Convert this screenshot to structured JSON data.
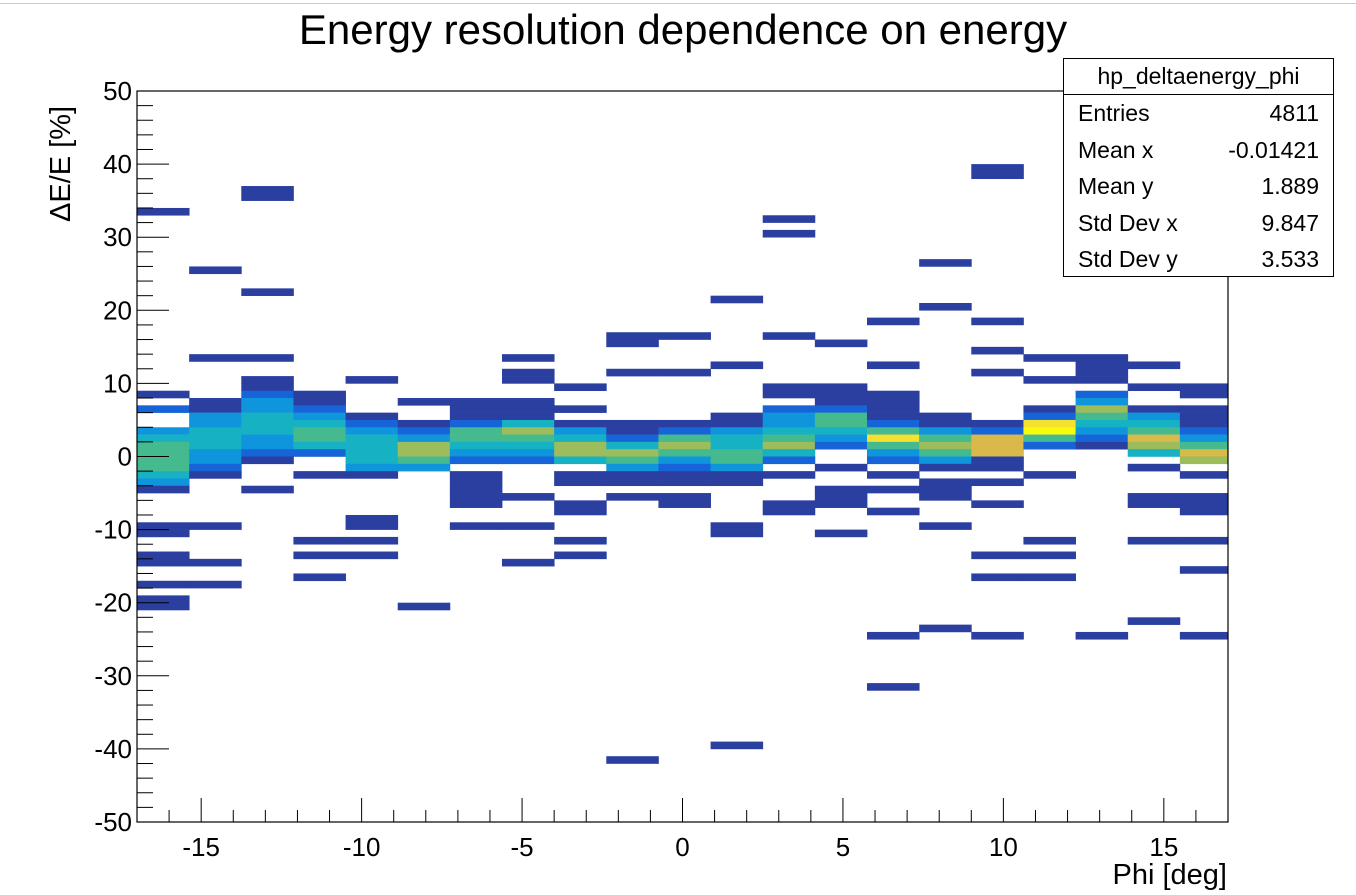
{
  "chart_data": {
    "type": "heatmap",
    "title": "Energy resolution dependence on energy",
    "xlabel": "Phi [deg]",
    "ylabel": "ΔE/E [%]",
    "xlim": [
      -17,
      17
    ],
    "ylim": [
      -50,
      50
    ],
    "x_ticks": [
      -15,
      -10,
      -5,
      0,
      5,
      10,
      15
    ],
    "y_ticks": [
      -50,
      -40,
      -30,
      -20,
      -10,
      0,
      10,
      20,
      30,
      40,
      50
    ],
    "x_bin_edges": [
      -17,
      -15.375,
      -13.75,
      -12.125,
      -10.5,
      -8.875,
      -7.25,
      -5.625,
      -4,
      -2.375,
      -0.75,
      0.875,
      2.5,
      4.125,
      5.75,
      7.375,
      9,
      10.625,
      12.25,
      13.875,
      15.5,
      17
    ],
    "y_bin_width": 1,
    "colorscale": [
      "#2a3fa0",
      "#1764d8",
      "#0f95dc",
      "#16b2c4",
      "#45ba8f",
      "#9dbc5c",
      "#d8b949",
      "#f6e12f",
      "#f9fb0e"
    ],
    "cells": [
      [
        0,
        33,
        1
      ],
      [
        0,
        8,
        1
      ],
      [
        0,
        6,
        2
      ],
      [
        0,
        3,
        3
      ],
      [
        0,
        2,
        4
      ],
      [
        0,
        1,
        5
      ],
      [
        0,
        0,
        5
      ],
      [
        0,
        -1,
        5
      ],
      [
        0,
        -2,
        5
      ],
      [
        0,
        -3,
        4
      ],
      [
        0,
        -4,
        3
      ],
      [
        0,
        -5,
        1
      ],
      [
        0,
        -10,
        1
      ],
      [
        0,
        -11,
        1
      ],
      [
        0,
        -14,
        1
      ],
      [
        0,
        -15,
        1
      ],
      [
        0,
        -18,
        1
      ],
      [
        0,
        -20,
        1
      ],
      [
        0,
        -21,
        1
      ],
      [
        1,
        25,
        1
      ],
      [
        1,
        13,
        1
      ],
      [
        1,
        7,
        1
      ],
      [
        1,
        6,
        1
      ],
      [
        1,
        5,
        3
      ],
      [
        1,
        4,
        3
      ],
      [
        1,
        3,
        4
      ],
      [
        1,
        2,
        4
      ],
      [
        1,
        1,
        4
      ],
      [
        1,
        0,
        3
      ],
      [
        1,
        -1,
        3
      ],
      [
        1,
        -2,
        2
      ],
      [
        1,
        -3,
        1
      ],
      [
        1,
        -10,
        1
      ],
      [
        1,
        -15,
        1
      ],
      [
        1,
        -18,
        1
      ],
      [
        2,
        36,
        1
      ],
      [
        2,
        35,
        1
      ],
      [
        2,
        22,
        1
      ],
      [
        2,
        13,
        1
      ],
      [
        2,
        10,
        1
      ],
      [
        2,
        9,
        1
      ],
      [
        2,
        8,
        2
      ],
      [
        2,
        7,
        3
      ],
      [
        2,
        6,
        3
      ],
      [
        2,
        5,
        4
      ],
      [
        2,
        4,
        4
      ],
      [
        2,
        3,
        4
      ],
      [
        2,
        2,
        3
      ],
      [
        2,
        1,
        3
      ],
      [
        2,
        0,
        2
      ],
      [
        2,
        -1,
        1
      ],
      [
        2,
        -5,
        1
      ],
      [
        3,
        8,
        1
      ],
      [
        3,
        7,
        1
      ],
      [
        3,
        6,
        2
      ],
      [
        3,
        5,
        3
      ],
      [
        3,
        4,
        4
      ],
      [
        3,
        3,
        5
      ],
      [
        3,
        2,
        5
      ],
      [
        3,
        1,
        4
      ],
      [
        3,
        0,
        2
      ],
      [
        3,
        -3,
        1
      ],
      [
        3,
        -12,
        1
      ],
      [
        3,
        -14,
        1
      ],
      [
        3,
        -17,
        1
      ],
      [
        4,
        10,
        1
      ],
      [
        4,
        5,
        1
      ],
      [
        4,
        4,
        2
      ],
      [
        4,
        3,
        3
      ],
      [
        4,
        2,
        4
      ],
      [
        4,
        1,
        4
      ],
      [
        4,
        0,
        4
      ],
      [
        4,
        -1,
        4
      ],
      [
        4,
        -2,
        3
      ],
      [
        4,
        -3,
        1
      ],
      [
        4,
        -9,
        1
      ],
      [
        4,
        -10,
        1
      ],
      [
        4,
        -12,
        1
      ],
      [
        4,
        -14,
        1
      ],
      [
        5,
        7,
        1
      ],
      [
        5,
        4,
        1
      ],
      [
        5,
        3,
        2
      ],
      [
        5,
        2,
        3
      ],
      [
        5,
        1,
        6
      ],
      [
        5,
        0,
        6
      ],
      [
        5,
        -1,
        5
      ],
      [
        5,
        -2,
        3
      ],
      [
        5,
        -21,
        1
      ],
      [
        6,
        7,
        1
      ],
      [
        6,
        6,
        1
      ],
      [
        6,
        5,
        1
      ],
      [
        6,
        4,
        2
      ],
      [
        6,
        3,
        5
      ],
      [
        6,
        2,
        5
      ],
      [
        6,
        1,
        4
      ],
      [
        6,
        0,
        3
      ],
      [
        6,
        -1,
        2
      ],
      [
        6,
        -3,
        1
      ],
      [
        6,
        -4,
        1
      ],
      [
        6,
        -5,
        1
      ],
      [
        6,
        -6,
        1
      ],
      [
        6,
        -7,
        1
      ],
      [
        6,
        -10,
        1
      ],
      [
        7,
        13,
        1
      ],
      [
        7,
        11,
        1
      ],
      [
        7,
        10,
        1
      ],
      [
        7,
        7,
        1
      ],
      [
        7,
        6,
        1
      ],
      [
        7,
        5,
        1
      ],
      [
        7,
        4,
        4
      ],
      [
        7,
        3,
        6
      ],
      [
        7,
        2,
        5
      ],
      [
        7,
        1,
        4
      ],
      [
        7,
        0,
        3
      ],
      [
        7,
        -1,
        2
      ],
      [
        7,
        -6,
        1
      ],
      [
        7,
        -10,
        1
      ],
      [
        7,
        -15,
        1
      ],
      [
        8,
        9,
        1
      ],
      [
        8,
        6,
        1
      ],
      [
        8,
        4,
        1
      ],
      [
        8,
        3,
        3
      ],
      [
        8,
        2,
        4
      ],
      [
        8,
        1,
        6
      ],
      [
        8,
        0,
        6
      ],
      [
        8,
        -1,
        4
      ],
      [
        8,
        -3,
        1
      ],
      [
        8,
        -4,
        1
      ],
      [
        8,
        -7,
        1
      ],
      [
        8,
        -8,
        1
      ],
      [
        8,
        -12,
        1
      ],
      [
        8,
        -14,
        1
      ],
      [
        9,
        16,
        1
      ],
      [
        9,
        15,
        1
      ],
      [
        9,
        11,
        1
      ],
      [
        9,
        4,
        1
      ],
      [
        9,
        3,
        1
      ],
      [
        9,
        2,
        2
      ],
      [
        9,
        1,
        4
      ],
      [
        9,
        0,
        6
      ],
      [
        9,
        -1,
        5
      ],
      [
        9,
        -2,
        3
      ],
      [
        9,
        -3,
        1
      ],
      [
        9,
        -4,
        1
      ],
      [
        9,
        -6,
        1
      ],
      [
        9,
        -42,
        1
      ],
      [
        10,
        16,
        1
      ],
      [
        10,
        11,
        1
      ],
      [
        10,
        4,
        1
      ],
      [
        10,
        3,
        2
      ],
      [
        10,
        2,
        5
      ],
      [
        10,
        1,
        6
      ],
      [
        10,
        0,
        5
      ],
      [
        10,
        -1,
        3
      ],
      [
        10,
        -2,
        2
      ],
      [
        10,
        -3,
        1
      ],
      [
        10,
        -4,
        1
      ],
      [
        10,
        -6,
        1
      ],
      [
        10,
        -7,
        1
      ],
      [
        11,
        21,
        1
      ],
      [
        11,
        12,
        1
      ],
      [
        11,
        5,
        1
      ],
      [
        11,
        4,
        1
      ],
      [
        11,
        3,
        3
      ],
      [
        11,
        2,
        4
      ],
      [
        11,
        1,
        4
      ],
      [
        11,
        0,
        5
      ],
      [
        11,
        -1,
        5
      ],
      [
        11,
        -2,
        3
      ],
      [
        11,
        -3,
        1
      ],
      [
        11,
        -4,
        1
      ],
      [
        11,
        -10,
        1
      ],
      [
        11,
        -11,
        1
      ],
      [
        11,
        -40,
        1
      ],
      [
        12,
        32,
        1
      ],
      [
        12,
        30,
        1
      ],
      [
        12,
        16,
        1
      ],
      [
        12,
        9,
        1
      ],
      [
        12,
        8,
        1
      ],
      [
        12,
        6,
        2
      ],
      [
        12,
        5,
        3
      ],
      [
        12,
        4,
        3
      ],
      [
        12,
        3,
        4
      ],
      [
        12,
        2,
        5
      ],
      [
        12,
        1,
        6
      ],
      [
        12,
        0,
        4
      ],
      [
        12,
        -1,
        2
      ],
      [
        12,
        -3,
        1
      ],
      [
        12,
        -7,
        1
      ],
      [
        12,
        -8,
        1
      ],
      [
        13,
        15,
        1
      ],
      [
        13,
        9,
        1
      ],
      [
        13,
        8,
        1
      ],
      [
        13,
        7,
        1
      ],
      [
        13,
        6,
        2
      ],
      [
        13,
        5,
        5
      ],
      [
        13,
        4,
        5
      ],
      [
        13,
        3,
        4
      ],
      [
        13,
        2,
        3
      ],
      [
        13,
        1,
        2
      ],
      [
        13,
        -2,
        1
      ],
      [
        13,
        -5,
        1
      ],
      [
        13,
        -6,
        1
      ],
      [
        13,
        -7,
        1
      ],
      [
        13,
        -11,
        1
      ],
      [
        14,
        18,
        1
      ],
      [
        14,
        12,
        1
      ],
      [
        14,
        8,
        1
      ],
      [
        14,
        7,
        1
      ],
      [
        14,
        6,
        1
      ],
      [
        14,
        5,
        1
      ],
      [
        14,
        4,
        2
      ],
      [
        14,
        3,
        5
      ],
      [
        14,
        2,
        8
      ],
      [
        14,
        1,
        5
      ],
      [
        14,
        0,
        3
      ],
      [
        14,
        -1,
        2
      ],
      [
        14,
        -3,
        1
      ],
      [
        14,
        -5,
        1
      ],
      [
        14,
        -8,
        1
      ],
      [
        14,
        -25,
        1
      ],
      [
        14,
        -32,
        1
      ],
      [
        15,
        26,
        1
      ],
      [
        15,
        20,
        1
      ],
      [
        15,
        5,
        1
      ],
      [
        15,
        4,
        1
      ],
      [
        15,
        3,
        3
      ],
      [
        15,
        2,
        5
      ],
      [
        15,
        1,
        6
      ],
      [
        15,
        0,
        5
      ],
      [
        15,
        -1,
        3
      ],
      [
        15,
        -2,
        1
      ],
      [
        15,
        -4,
        1
      ],
      [
        15,
        -5,
        1
      ],
      [
        15,
        -6,
        1
      ],
      [
        15,
        -10,
        1
      ],
      [
        15,
        -24,
        1
      ],
      [
        16,
        39,
        1
      ],
      [
        16,
        38,
        1
      ],
      [
        16,
        18,
        1
      ],
      [
        16,
        14,
        1
      ],
      [
        16,
        11,
        1
      ],
      [
        16,
        4,
        1
      ],
      [
        16,
        3,
        2
      ],
      [
        16,
        2,
        7
      ],
      [
        16,
        1,
        7
      ],
      [
        16,
        0,
        7
      ],
      [
        16,
        -1,
        1
      ],
      [
        16,
        -2,
        1
      ],
      [
        16,
        -4,
        1
      ],
      [
        16,
        -7,
        1
      ],
      [
        16,
        -14,
        1
      ],
      [
        16,
        -17,
        1
      ],
      [
        16,
        -25,
        1
      ],
      [
        17,
        13,
        1
      ],
      [
        17,
        10,
        1
      ],
      [
        17,
        6,
        1
      ],
      [
        17,
        5,
        2
      ],
      [
        17,
        4,
        8
      ],
      [
        17,
        3,
        9
      ],
      [
        17,
        2,
        5
      ],
      [
        17,
        1,
        2
      ],
      [
        17,
        -3,
        1
      ],
      [
        17,
        -12,
        1
      ],
      [
        17,
        -14,
        1
      ],
      [
        17,
        -17,
        1
      ],
      [
        18,
        13,
        1
      ],
      [
        18,
        12,
        1
      ],
      [
        18,
        11,
        1
      ],
      [
        18,
        10,
        1
      ],
      [
        18,
        8,
        2
      ],
      [
        18,
        7,
        3
      ],
      [
        18,
        6,
        6
      ],
      [
        18,
        5,
        5
      ],
      [
        18,
        4,
        4
      ],
      [
        18,
        3,
        3
      ],
      [
        18,
        2,
        2
      ],
      [
        18,
        1,
        1
      ],
      [
        18,
        -25,
        1
      ],
      [
        19,
        12,
        1
      ],
      [
        19,
        9,
        1
      ],
      [
        19,
        6,
        1
      ],
      [
        19,
        5,
        3
      ],
      [
        19,
        4,
        4
      ],
      [
        19,
        3,
        5
      ],
      [
        19,
        2,
        7
      ],
      [
        19,
        1,
        6
      ],
      [
        19,
        0,
        4
      ],
      [
        19,
        -2,
        1
      ],
      [
        19,
        -6,
        1
      ],
      [
        19,
        -7,
        1
      ],
      [
        19,
        -12,
        1
      ],
      [
        19,
        -23,
        1
      ],
      [
        20,
        9,
        1
      ],
      [
        20,
        8,
        1
      ],
      [
        20,
        6,
        1
      ],
      [
        20,
        5,
        1
      ],
      [
        20,
        4,
        1
      ],
      [
        20,
        3,
        2
      ],
      [
        20,
        2,
        3
      ],
      [
        20,
        1,
        5
      ],
      [
        20,
        0,
        7
      ],
      [
        20,
        -1,
        6
      ],
      [
        20,
        -3,
        1
      ],
      [
        20,
        -6,
        1
      ],
      [
        20,
        -7,
        1
      ],
      [
        20,
        -8,
        1
      ],
      [
        20,
        -12,
        1
      ],
      [
        20,
        -16,
        1
      ],
      [
        20,
        -25,
        1
      ]
    ]
  },
  "stats": {
    "title": "hp_deltaenergy_phi",
    "rows": [
      {
        "label": "Entries",
        "value": "4811"
      },
      {
        "label": "Mean x",
        "value": "-0.01421"
      },
      {
        "label": "Mean y",
        "value": "1.889"
      },
      {
        "label": "Std Dev x",
        "value": "9.847"
      },
      {
        "label": "Std Dev y",
        "value": "3.533"
      }
    ]
  }
}
